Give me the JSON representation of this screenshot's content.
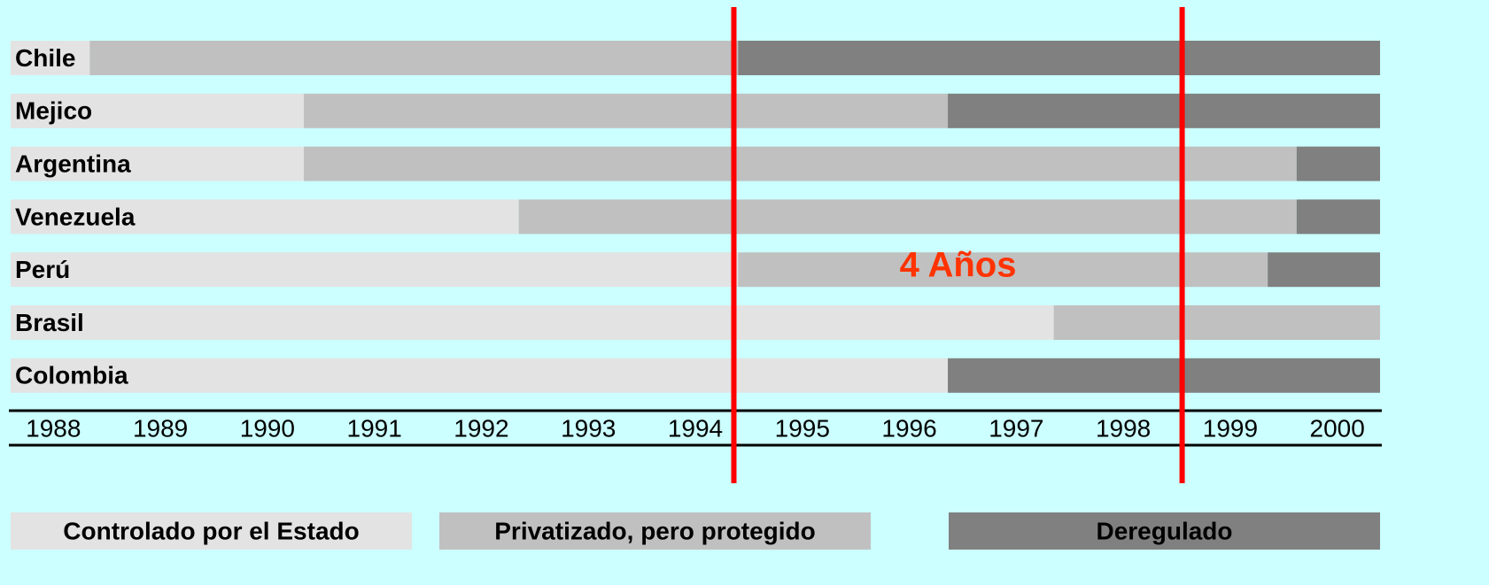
{
  "chart_data": {
    "type": "timeline",
    "categories": [
      "Chile",
      "Mejico",
      "Argentina",
      "Venezuela",
      "Perú",
      "Brasil",
      "Colombia"
    ],
    "series": [
      {
        "name": "Controlado por el Estado",
        "color": "#e3e3e3",
        "start": [
          1987.6,
          1987.6,
          1987.6,
          1987.6,
          1987.6,
          1987.6,
          1987.6
        ],
        "end": [
          1988.34,
          1990.34,
          1990.34,
          1992.35,
          1994.4,
          1997.35,
          1996.36
        ]
      },
      {
        "name": "Privatizado, pero protegido",
        "color": "#c0c0c0",
        "start": [
          1988.34,
          1990.34,
          1990.34,
          1992.35,
          1994.4,
          1997.35,
          null
        ],
        "end": [
          1994.4,
          1996.36,
          1999.62,
          1999.62,
          1999.35,
          2000.4,
          null
        ]
      },
      {
        "name": "Deregulado",
        "color": "#808080",
        "start": [
          1994.4,
          1996.36,
          1999.62,
          1999.62,
          1999.35,
          null,
          1996.36
        ],
        "end": [
          2000.4,
          2000.4,
          2000.4,
          2000.4,
          2000.4,
          null,
          2000.4
        ]
      }
    ],
    "xlim": [
      1987.6,
      2000.4
    ],
    "xticks": [
      1988,
      1989,
      1990,
      1991,
      1992,
      1993,
      1994,
      1995,
      1996,
      1997,
      1998,
      1999,
      2000
    ],
    "markers": {
      "color": "#ff0000",
      "values": [
        1994.36,
        1998.55
      ]
    },
    "annotation": "4 Años"
  }
}
